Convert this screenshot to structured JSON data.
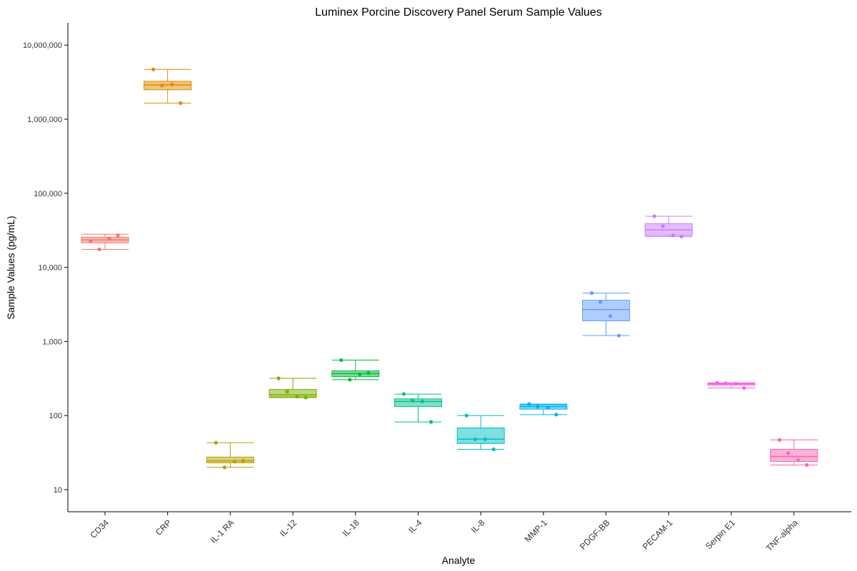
{
  "chart_data": {
    "type": "box",
    "title": "Luminex Porcine Discovery Panel Serum Sample Values",
    "xlabel": "Analyte",
    "ylabel": "Sample Values (pg/mL)",
    "y_scale": "log10",
    "ylim": [
      5,
      20000000
    ],
    "yticks": [
      10,
      100,
      1000,
      10000,
      100000,
      1000000,
      10000000
    ],
    "ytick_labels": [
      "10",
      "100",
      "1,000",
      "10,000",
      "100,000",
      "1,000,000",
      "10,000,000"
    ],
    "grid": false,
    "legend": "none",
    "categories": [
      "CD34",
      "CRP",
      "IL-1 RA",
      "IL-12",
      "IL-18",
      "IL-4",
      "IL-8",
      "MMP-1",
      "PDGF-BB",
      "PECAM-1",
      "Serpin E1",
      "TNF-alpha"
    ],
    "series": [
      {
        "category": "CD34",
        "color": "#F8766D",
        "box": {
          "min": 17500,
          "q1": 21500,
          "median": 23500,
          "q3": 25500,
          "max": 28000
        },
        "points": [
          22500,
          17500,
          24500,
          27000
        ]
      },
      {
        "category": "CRP",
        "color": "#DE8C00",
        "box": {
          "min": 1650000,
          "q1": 2500000,
          "median": 2900000,
          "q3": 3250000,
          "max": 4700000
        },
        "points": [
          4700000,
          2850000,
          2950000,
          1650000
        ]
      },
      {
        "category": "IL-1 RA",
        "color": "#B79F00",
        "box": {
          "min": 20,
          "q1": 23,
          "median": 24.5,
          "q3": 27.5,
          "max": 43
        },
        "points": [
          43,
          20,
          24,
          24.5
        ]
      },
      {
        "category": "IL-12",
        "color": "#7CAE00",
        "box": {
          "min": 175,
          "q1": 178,
          "median": 190,
          "q3": 225,
          "max": 318
        },
        "points": [
          318,
          210,
          180,
          175
        ]
      },
      {
        "category": "IL-18",
        "color": "#00BA38",
        "box": {
          "min": 305,
          "q1": 335,
          "median": 368,
          "q3": 400,
          "max": 560
        },
        "points": [
          560,
          305,
          360,
          375
        ]
      },
      {
        "category": "IL-4",
        "color": "#00C08B",
        "box": {
          "min": 82,
          "q1": 132,
          "median": 155,
          "q3": 168,
          "max": 195
        },
        "points": [
          195,
          160,
          155,
          82
        ]
      },
      {
        "category": "IL-8",
        "color": "#00BFC4",
        "box": {
          "min": 35,
          "q1": 42,
          "median": 48,
          "q3": 68,
          "max": 100
        },
        "points": [
          100,
          48,
          48,
          35
        ]
      },
      {
        "category": "MMP-1",
        "color": "#00B4F0",
        "box": {
          "min": 103,
          "q1": 122,
          "median": 132,
          "q3": 140,
          "max": 143
        },
        "points": [
          143,
          132,
          128,
          103
        ]
      },
      {
        "category": "PDGF-BB",
        "color": "#619CFF",
        "box": {
          "min": 1200,
          "q1": 1900,
          "median": 2700,
          "q3": 3600,
          "max": 4500
        },
        "points": [
          4500,
          3400,
          2200,
          1200
        ]
      },
      {
        "category": "PECAM-1",
        "color": "#C77CFF",
        "box": {
          "min": 26000,
          "q1": 27000,
          "median": 32000,
          "q3": 39000,
          "max": 49000
        },
        "points": [
          49000,
          36000,
          27000,
          26000
        ]
      },
      {
        "category": "Serpin E1",
        "color": "#F564E3",
        "box": {
          "min": 235,
          "q1": 258,
          "median": 268,
          "q3": 272,
          "max": 276
        },
        "points": [
          276,
          272,
          270,
          235
        ]
      },
      {
        "category": "TNF-alpha",
        "color": "#FF64B0",
        "box": {
          "min": 21.5,
          "q1": 24,
          "median": 28,
          "q3": 35,
          "max": 47
        },
        "points": [
          47,
          31,
          25,
          21.5
        ]
      }
    ]
  }
}
